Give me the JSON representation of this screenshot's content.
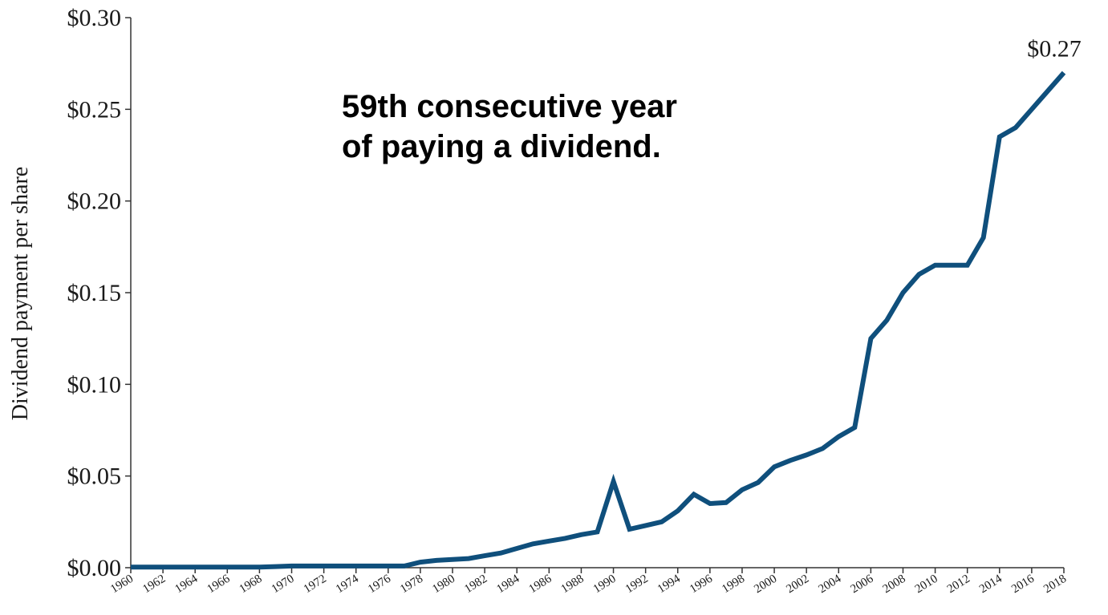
{
  "chart_data": {
    "type": "line",
    "title": "",
    "xlabel": "",
    "ylabel": "Dividend payment per share",
    "ylim": [
      0,
      0.3
    ],
    "xlim": [
      1960,
      2018
    ],
    "grid": false,
    "y_ticks": [
      0,
      0.05,
      0.1,
      0.15,
      0.2,
      0.25,
      0.3
    ],
    "y_tick_labels": [
      "$0.00",
      "$0.05",
      "$0.10",
      "$0.15",
      "$0.20",
      "$0.25",
      "$0.30"
    ],
    "x_tick_labels": [
      "1960",
      "1962",
      "1964",
      "1966",
      "1968",
      "1970",
      "1972",
      "1974",
      "1976",
      "1978",
      "1980",
      "1982",
      "1984",
      "1986",
      "1988",
      "1990",
      "1992",
      "1994",
      "1996",
      "1998",
      "2000",
      "2002",
      "2004",
      "2006",
      "2008",
      "2010",
      "2012",
      "2014",
      "2016",
      "2018"
    ],
    "annotation_lines": [
      "59th consecutive year",
      "of paying a dividend."
    ],
    "end_label": "$0.27",
    "line_color": "#0f4f7c",
    "series": [
      {
        "x": [
          1960,
          1961,
          1962,
          1963,
          1964,
          1965,
          1966,
          1967,
          1968,
          1969,
          1970,
          1971,
          1972,
          1973,
          1974,
          1975,
          1976,
          1977,
          1978,
          1979,
          1980,
          1981,
          1982,
          1983,
          1984,
          1985,
          1986,
          1987,
          1988,
          1989,
          1990,
          1991,
          1992,
          1993,
          1994,
          1995,
          1996,
          1997,
          1998,
          1999,
          2000,
          2001,
          2002,
          2003,
          2004,
          2005,
          2006,
          2007,
          2008,
          2009,
          2010,
          2011,
          2012,
          2013,
          2014,
          2015,
          2016,
          2017,
          2018
        ],
        "values": [
          0.0003,
          0.0003,
          0.0003,
          0.0003,
          0.0003,
          0.0003,
          0.0003,
          0.0003,
          0.0003,
          0.0006,
          0.0009,
          0.0009,
          0.0009,
          0.0009,
          0.0009,
          0.0009,
          0.0009,
          0.0009,
          0.003,
          0.004,
          0.0045,
          0.005,
          0.0065,
          0.008,
          0.0105,
          0.013,
          0.0145,
          0.016,
          0.018,
          0.0195,
          0.047,
          0.021,
          0.023,
          0.025,
          0.031,
          0.04,
          0.035,
          0.0355,
          0.0425,
          0.0465,
          0.055,
          0.0585,
          0.0615,
          0.065,
          0.0715,
          0.0765,
          0.125,
          0.135,
          0.15,
          0.16,
          0.165,
          0.165,
          0.165,
          0.18,
          0.235,
          0.24,
          0.25,
          0.26,
          0.27
        ]
      }
    ]
  }
}
